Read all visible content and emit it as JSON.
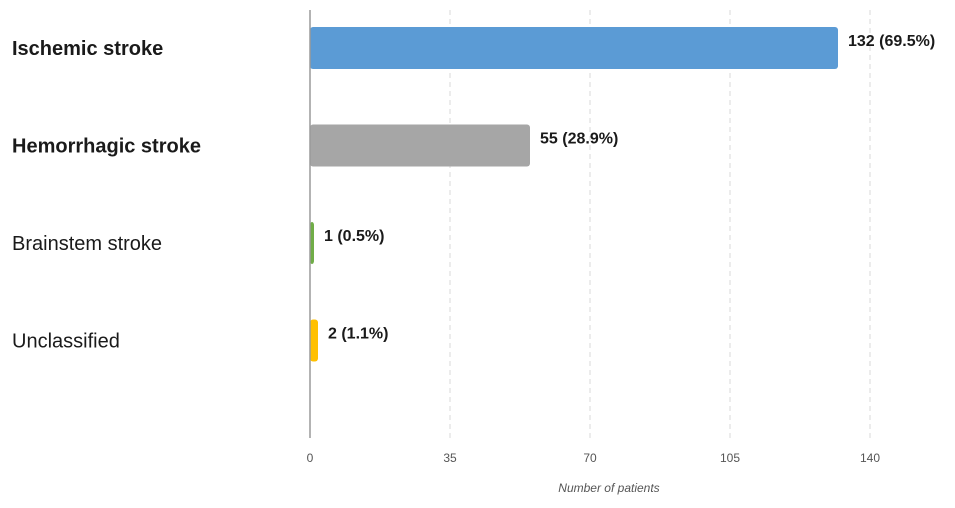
{
  "chart_data": {
    "type": "bar",
    "orientation": "horizontal",
    "categories": [
      "Ischemic stroke",
      "Hemorrhagic stroke",
      "Brainstem stroke",
      "Unclassified"
    ],
    "category_bold": [
      true,
      true,
      false,
      false
    ],
    "values": [
      132,
      55,
      1,
      2
    ],
    "data_labels": [
      "132 (69.5%)",
      "55 (28.9%)",
      "1 (0.5%)",
      "2 (1.1%)"
    ],
    "colors": [
      "#5b9bd5",
      "#a6a6a6",
      "#70ad47",
      "#ffc000"
    ],
    "xlim": [
      0,
      140
    ],
    "xticks": [
      0,
      35,
      70,
      105,
      140
    ],
    "xlabel": "Number of patients",
    "ylabel": "",
    "title": "",
    "grid": "vertical dashed"
  }
}
